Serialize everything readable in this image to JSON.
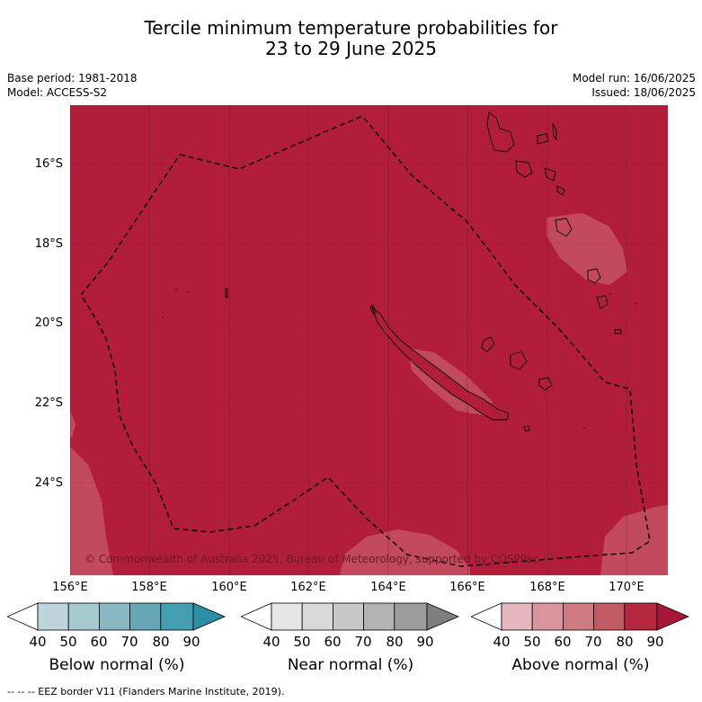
{
  "title_line1": "Tercile minimum temperature probabilities for",
  "title_line2": "23 to 29 June 2025",
  "base_period": "Base period: 1981-2018",
  "model": "Model: ACCESS-S2",
  "model_run": "Model run: 16/06/2025",
  "issued": "Issued: 18/06/2025",
  "copyright": "© Commonwealth of Australia 2025, Bureau of Meteorology, supported by COSPPac",
  "lat_labels": [
    "16°S",
    "18°S",
    "20°S",
    "22°S",
    "24°S"
  ],
  "lon_labels": [
    "156°E",
    "158°E",
    "160°E",
    "162°E",
    "164°E",
    "166°E",
    "168°E",
    "170°E"
  ],
  "colorbars": [
    {
      "label": "Below normal (%)",
      "ticks": [
        "40",
        "50",
        "60",
        "70",
        "80",
        "90"
      ],
      "colors": [
        "#ffffff",
        "#bfd5dc",
        "#a6c8cf",
        "#88b7c2",
        "#67a7b5",
        "#449fb0",
        "#2a8fa4"
      ]
    },
    {
      "label": "Near normal (%)",
      "ticks": [
        "40",
        "50",
        "60",
        "70",
        "80",
        "90"
      ],
      "colors": [
        "#ffffff",
        "#e6e6e6",
        "#d9d9d9",
        "#c8c8c8",
        "#b3b3b3",
        "#9c9c9c",
        "#7f7f7f"
      ]
    },
    {
      "label": "Above normal (%)",
      "ticks": [
        "40",
        "50",
        "60",
        "70",
        "80",
        "90"
      ],
      "colors": [
        "#ffffff",
        "#e3b7bd",
        "#d9959b",
        "#cd7a80",
        "#c25a63",
        "#b5283d",
        "#a8173a"
      ]
    }
  ],
  "footer": "-- -- -- EEZ border V11 (Flanders Marine Institute, 2019).",
  "colors": {
    "dominant_fill": "#b21e3a",
    "light_patch": "#c24a5c"
  }
}
